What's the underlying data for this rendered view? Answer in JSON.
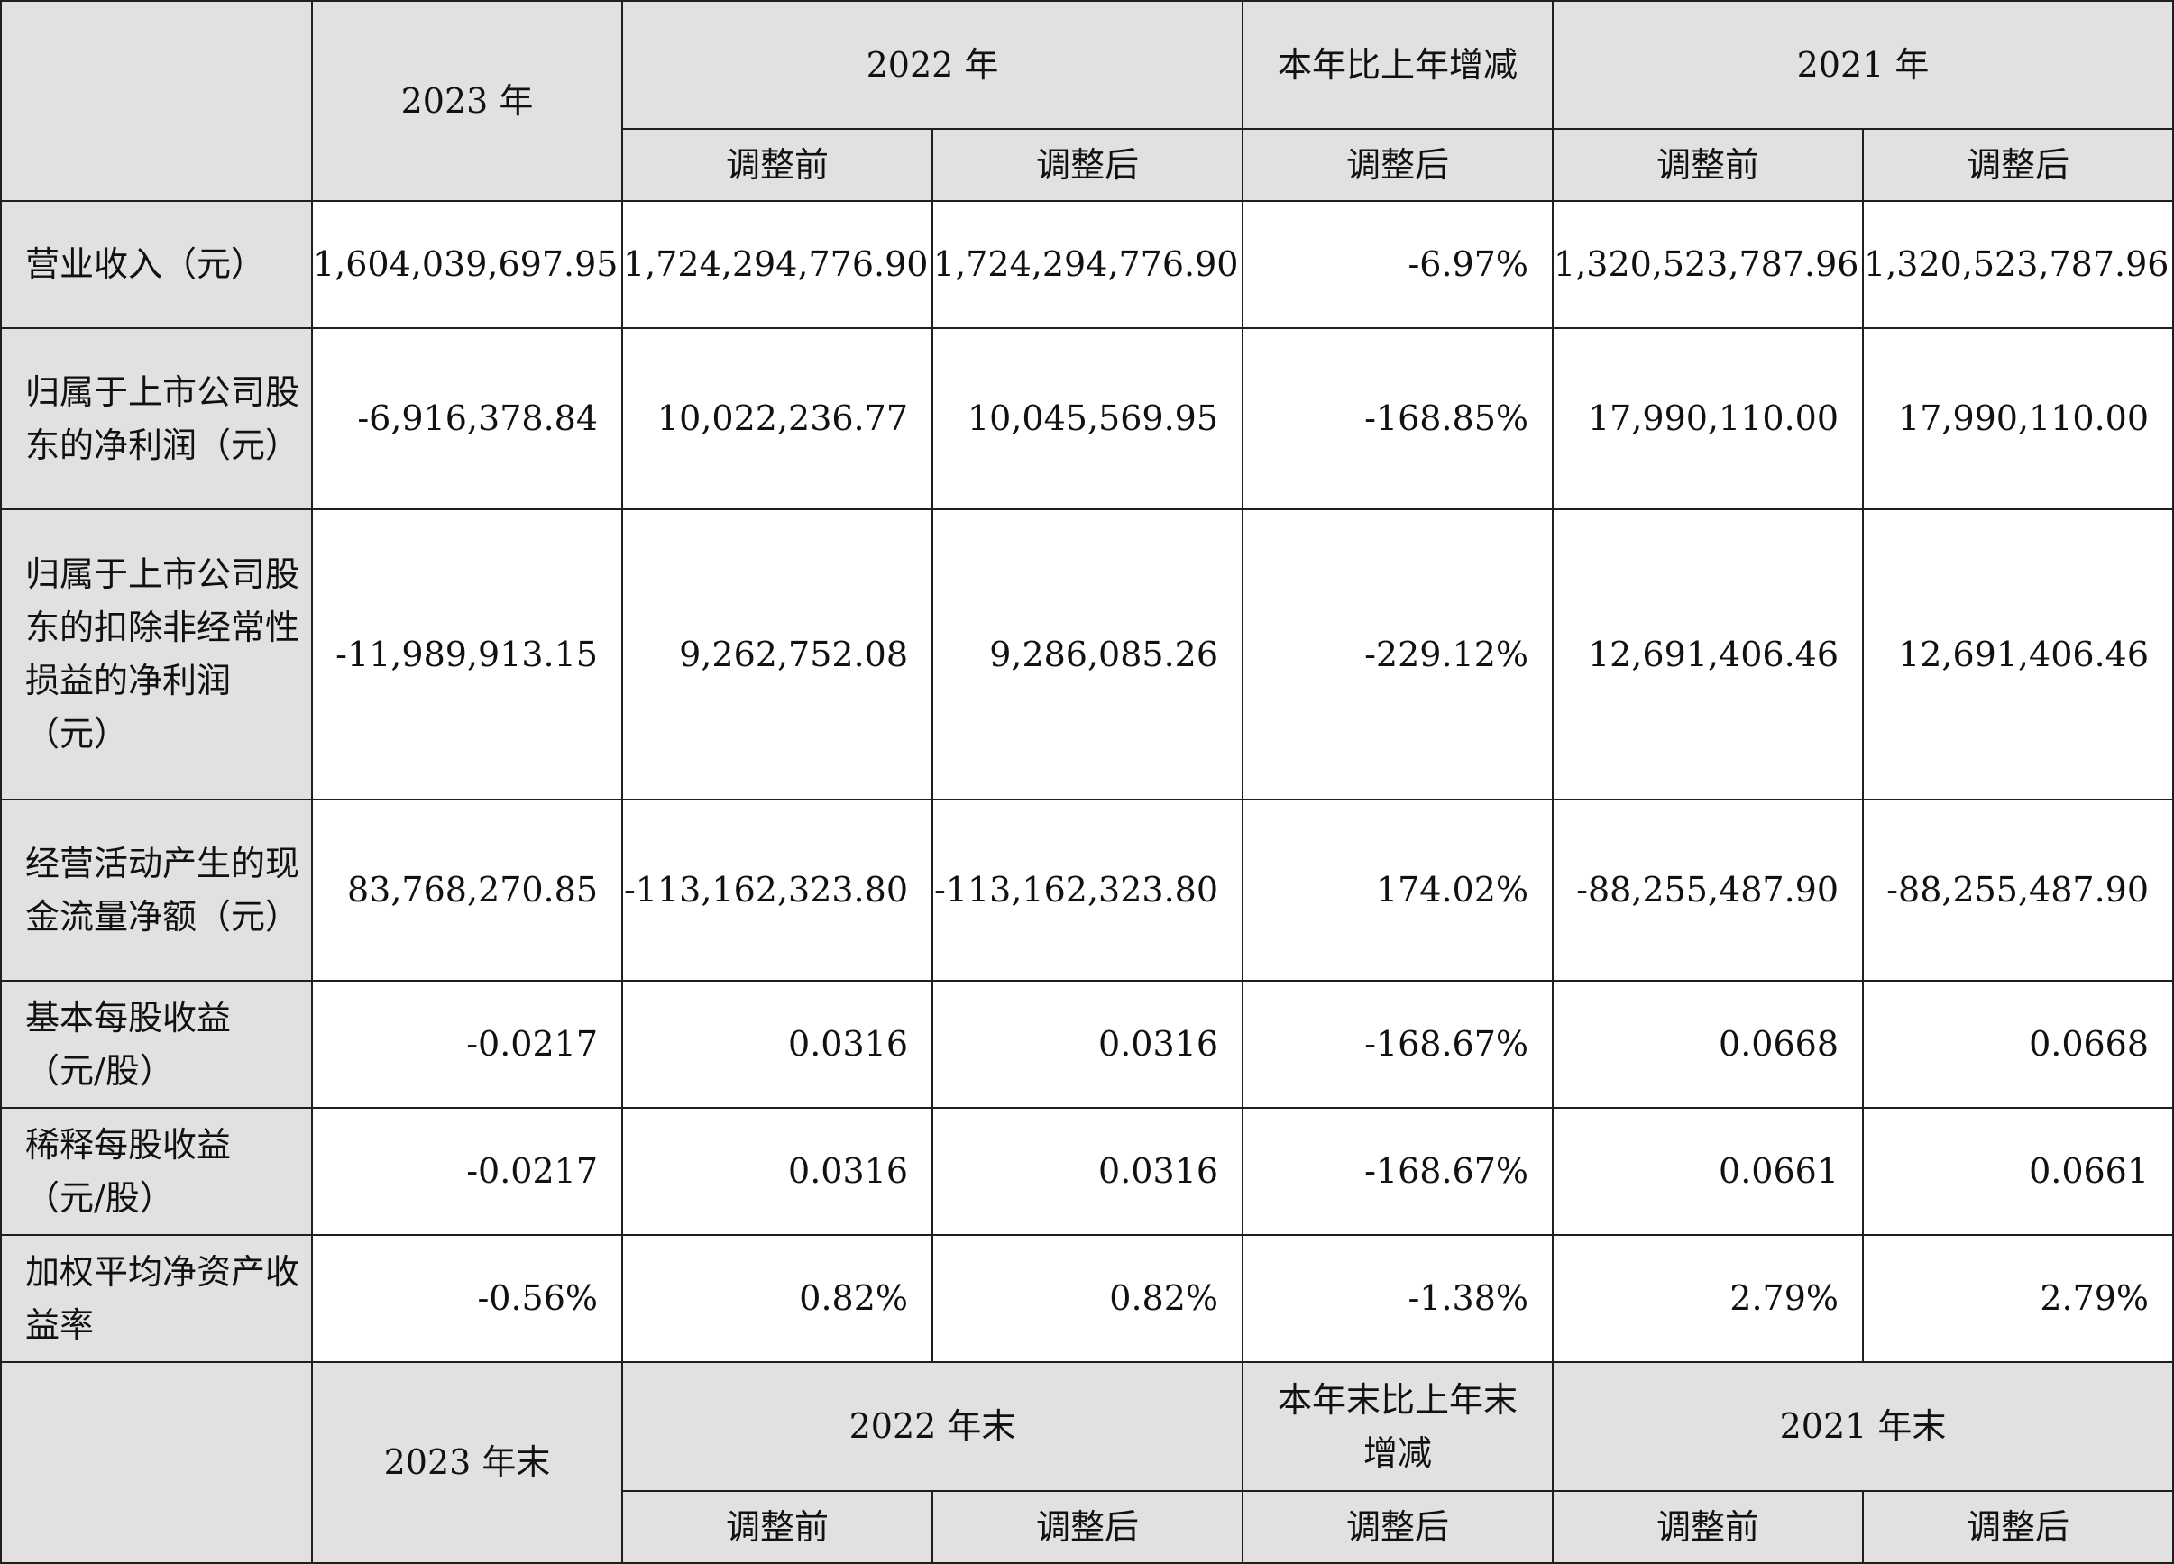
{
  "header": {
    "col_2023": "2023 年",
    "col_2022": "2022 年",
    "col_change": "本年比上年增减",
    "col_2021": "2021 年",
    "before_adjust": "调整前",
    "after_adjust": "调整后"
  },
  "rows": [
    {
      "label": "营业收入（元）",
      "values": [
        "1,604,039,697.95",
        "1,724,294,776.90",
        "1,724,294,776.90",
        "-6.97%",
        "1,320,523,787.96",
        "1,320,523,787.96"
      ]
    },
    {
      "label": "归属于上市公司股东的净利润（元）",
      "values": [
        "-6,916,378.84",
        "10,022,236.77",
        "10,045,569.95",
        "-168.85%",
        "17,990,110.00",
        "17,990,110.00"
      ]
    },
    {
      "label": "归属于上市公司股东的扣除非经常性损益的净利润（元）",
      "values": [
        "-11,989,913.15",
        "9,262,752.08",
        "9,286,085.26",
        "-229.12%",
        "12,691,406.46",
        "12,691,406.46"
      ]
    },
    {
      "label": "经营活动产生的现金流量净额（元）",
      "values": [
        "83,768,270.85",
        "-113,162,323.80",
        "-113,162,323.80",
        "174.02%",
        "-88,255,487.90",
        "-88,255,487.90"
      ]
    },
    {
      "label": "基本每股收益（元/股）",
      "values": [
        "-0.0217",
        "0.0316",
        "0.0316",
        "-168.67%",
        "0.0668",
        "0.0668"
      ]
    },
    {
      "label": "稀释每股收益（元/股）",
      "values": [
        "-0.0217",
        "0.0316",
        "0.0316",
        "-168.67%",
        "0.0661",
        "0.0661"
      ]
    },
    {
      "label": "加权平均净资产收益率",
      "values": [
        "-0.56%",
        "0.82%",
        "0.82%",
        "-1.38%",
        "2.79%",
        "2.79%"
      ]
    }
  ],
  "footer_header": {
    "col_2023_end": "2023 年末",
    "col_2022_end": "2022 年末",
    "col_change_end": "本年末比上年末增减",
    "col_2021_end": "2021 年末",
    "before_adjust": "调整前",
    "after_adjust": "调整后"
  }
}
